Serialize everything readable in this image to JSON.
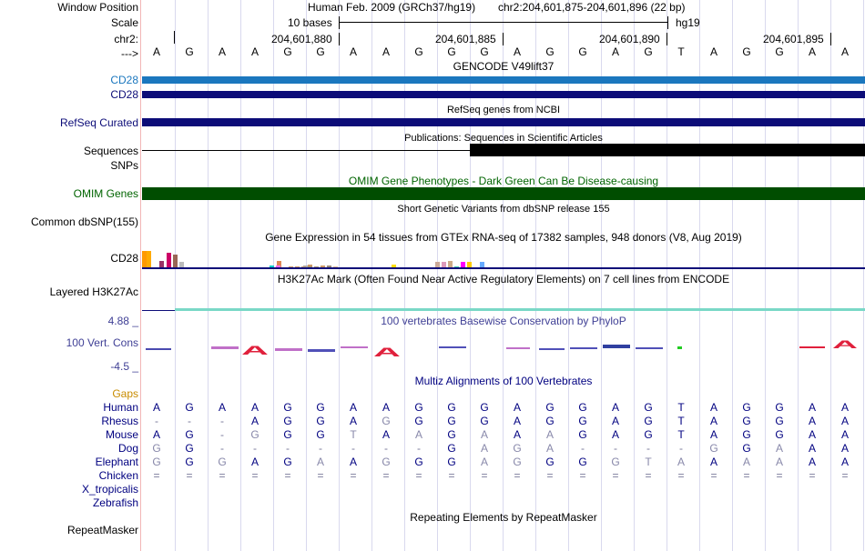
{
  "labels": {
    "window_position": "Window Position",
    "scale": "Scale",
    "chr": "chr2:",
    "strand": "--->",
    "cd28_a": "CD28",
    "cd28_b": "CD28",
    "refseq": "RefSeq Curated",
    "sequences": "Sequences",
    "snps": "SNPs",
    "omim": "OMIM Genes",
    "common_dbsnp": "Common dbSNP(155)",
    "cd28_gtex": "CD28",
    "h3k27ac": "Layered H3K27Ac",
    "phylop_max": "4.88 _",
    "vert_cons": "100 Vert. Cons",
    "phylop_min": "-4.5 _",
    "gaps": "Gaps",
    "repeatmasker": "RepeatMasker"
  },
  "header": {
    "assembly": "Human Feb. 2009 (GRCh37/hg19)",
    "position": "chr2:204,601,875-204,601,896 (22 bp)",
    "scale_text": "10 bases",
    "scale_db": "hg19",
    "ticks": [
      "204,601,880",
      "204,601,885",
      "204,601,890",
      "204,601,895"
    ]
  },
  "track_titles": {
    "gencode": "GENCODE V49lift37",
    "refseq": "RefSeq genes from NCBI",
    "publications": "Publications: Sequences in Scientific Articles",
    "omim": "OMIM Gene Phenotypes - Dark Green Can Be Disease-causing",
    "dbsnp": "Short Genetic Variants from dbSNP release 155",
    "gtex": "Gene Expression in 54 tissues from GTEx RNA-seq of 17382 samples, 948 donors (V8, Aug 2019)",
    "h3k27ac": "H3K27Ac Mark (Often Found Near Active Regulatory Elements) on 7 cell lines from ENCODE",
    "phylop": "100 vertebrates Basewise Conservation by PhyloP",
    "multiz": "Multiz Alignments of 100 Vertebrates",
    "repeats": "Repeating Elements by RepeatMasker"
  },
  "colors": {
    "gencode_light": "#1b77be",
    "gencode_dark": "#0c0c78",
    "refseq": "#0c0c78",
    "omim": "#004d00",
    "omim_label": "#006400",
    "gaps": "#c88c00",
    "species": "#000080",
    "phylop": "#3f3f95",
    "h3k27ac": "#7ad8c7"
  },
  "sequence": [
    "A",
    "G",
    "A",
    "A",
    "G",
    "G",
    "A",
    "A",
    "G",
    "G",
    "G",
    "A",
    "G",
    "G",
    "A",
    "G",
    "T",
    "A",
    "G",
    "G",
    "A",
    "A"
  ],
  "gtex_expression": [
    0.9,
    0.9,
    0.35,
    0.8,
    0.7,
    0.3,
    0.35,
    0,
    0,
    0,
    0,
    0,
    0.1,
    0,
    0,
    0.15,
    0,
    0,
    0,
    0.15,
    0,
    0,
    0,
    0,
    0,
    0.05,
    0,
    0,
    0,
    0,
    0,
    0,
    0,
    0,
    0,
    0,
    0,
    0.1,
    0.1,
    0.05,
    0.05,
    0.05,
    0.05,
    0.05,
    0.1,
    0.1,
    0.05,
    0.3,
    0.05,
    0.3,
    0.35,
    0.3,
    0.3,
    0.3
  ],
  "multiz": [
    {
      "species": "Human",
      "bases": [
        "A",
        "G",
        "A",
        "A",
        "G",
        "G",
        "A",
        "A",
        "G",
        "G",
        "G",
        "A",
        "G",
        "G",
        "A",
        "G",
        "T",
        "A",
        "G",
        "G",
        "A",
        "A"
      ]
    },
    {
      "species": "Rhesus",
      "bases": [
        "-",
        "-",
        "-",
        "A",
        "G",
        "G",
        "A",
        "G",
        "G",
        "G",
        "G",
        "A",
        "G",
        "G",
        "A",
        "G",
        "T",
        "A",
        "G",
        "G",
        "A",
        "A"
      ]
    },
    {
      "species": "Mouse",
      "bases": [
        "A",
        "G",
        "-",
        "G",
        "G",
        "G",
        "T",
        "A",
        "A",
        "G",
        "A",
        "A",
        "A",
        "G",
        "A",
        "G",
        "T",
        "A",
        "G",
        "G",
        "A",
        "A"
      ]
    },
    {
      "species": "Dog",
      "bases": [
        "G",
        "G",
        "-",
        "-",
        "-",
        "-",
        "-",
        "-",
        "-",
        "G",
        "A",
        "G",
        "A",
        "-",
        "-",
        "-",
        "-",
        "G",
        "G",
        "A",
        "A",
        "A"
      ]
    },
    {
      "species": "Elephant",
      "bases": [
        "G",
        "G",
        "G",
        "A",
        "G",
        "A",
        "A",
        "G",
        "G",
        "G",
        "A",
        "G",
        "G",
        "G",
        "G",
        "T",
        "A",
        "A",
        "A",
        "A",
        "A",
        "A"
      ]
    },
    {
      "species": "Chicken",
      "bases": [
        "=",
        "=",
        "=",
        "=",
        "=",
        "=",
        "=",
        "=",
        "=",
        "=",
        "=",
        "=",
        "=",
        "=",
        "=",
        "=",
        "=",
        "=",
        "=",
        "=",
        "=",
        "="
      ]
    },
    {
      "species": "X_tropicalis",
      "bases": []
    },
    {
      "species": "Zebrafish",
      "bases": []
    }
  ]
}
